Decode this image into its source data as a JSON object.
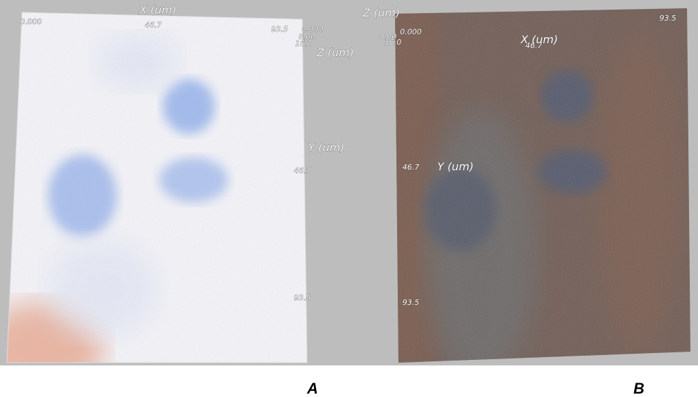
{
  "panels": [
    {
      "label": "A",
      "x_title": "X (um)",
      "x_ticks": [
        "0.000",
        "46.7",
        "93.5"
      ],
      "z_title": "Z (um)",
      "z_ticks": [
        "0.000",
        "8.00",
        "16.0"
      ],
      "y_title": "Y (um)",
      "y_ticks": [
        "46.7",
        "93.5"
      ]
    },
    {
      "label": "B",
      "x_title": "X (um)",
      "x_ticks": [
        "46.7",
        "93.5"
      ],
      "z_title": "Z (um)",
      "z_ticks": [
        "0.000",
        "8.00",
        "16.0"
      ],
      "y_title": "Y (um)",
      "y_ticks": [
        "46.7",
        "93.5"
      ]
    }
  ]
}
